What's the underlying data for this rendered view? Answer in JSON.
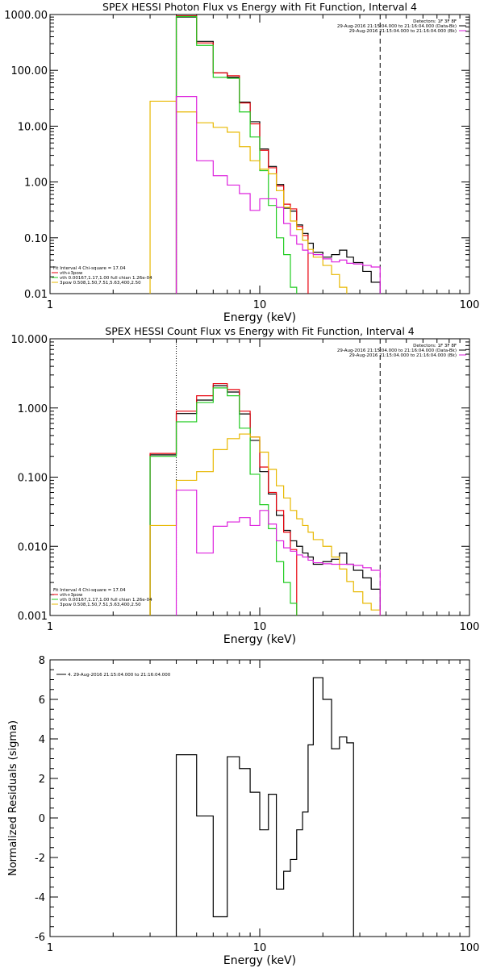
{
  "chart_data": [
    {
      "type": "line",
      "id": "photon",
      "title": "SPEX HESSI Photon Flux vs Energy with Fit Function, Interval 4",
      "xlabel": "Energy (keV)",
      "ylabel": "",
      "xscale": "log",
      "yscale": "log",
      "xlim": [
        1,
        100
      ],
      "ylim": [
        0.01,
        1000
      ],
      "xticklabels": [
        "1",
        "10",
        "100"
      ],
      "yticklabels": [
        "0.01",
        "0.10",
        "1.00",
        "10.00",
        "100.00",
        "1000.00"
      ],
      "vlines": {
        "dotted": 4.0,
        "dashed": 37.5
      },
      "bin_edges": [
        3.0,
        4.0,
        5.0,
        6.0,
        7.0,
        8.0,
        9.0,
        10.0,
        11.0,
        12.0,
        13.0,
        14.0,
        15.0,
        16.0,
        17.0,
        18.0,
        20.0,
        22.0,
        24.0,
        26.0,
        28.0,
        31.0,
        34.0,
        37.5
      ],
      "series": [
        {
          "name": "data",
          "color": "#000000",
          "values": [
            null,
            900,
            330,
            90,
            75,
            27,
            12,
            3.9,
            1.9,
            0.9,
            0.34,
            0.3,
            0.17,
            0.12,
            0.08,
            0.055,
            0.045,
            0.05,
            0.06,
            0.045,
            0.036,
            0.025,
            0.016
          ]
        },
        {
          "name": "vth+3pow",
          "color": "#e8000b",
          "values": [
            null,
            950,
            310,
            90,
            80,
            26,
            11,
            3.7,
            1.8,
            0.85,
            0.4,
            0.33,
            0.16,
            0.11
          ]
        },
        {
          "name": "vth",
          "color": "#22cc22",
          "values": [
            null,
            920,
            280,
            75,
            72,
            18,
            6.4,
            1.6,
            0.38,
            0.1,
            0.05,
            0.013
          ]
        },
        {
          "name": "3pow",
          "color": "#e8b800",
          "values": [
            28,
            18,
            11.5,
            9.5,
            7.8,
            4.3,
            2.4,
            1.7,
            1.4,
            0.7,
            0.35,
            0.2,
            0.14,
            0.09,
            0.062,
            0.045,
            0.032,
            0.022,
            0.013
          ]
        },
        {
          "name": "bkg",
          "color": "#dd22dd",
          "values": [
            null,
            34,
            2.4,
            1.3,
            0.88,
            0.62,
            0.31,
            0.5,
            0.5,
            0.35,
            0.18,
            0.11,
            0.077,
            0.06,
            0.053,
            0.05,
            0.042,
            0.037,
            0.04,
            0.035,
            0.034,
            0.032,
            0.03
          ]
        }
      ],
      "legend_top_right": [
        "Detectors: 1F 3F 8F",
        "29-Aug-2016 21:15:04.000 to 21:16:04.000 (Data-Bk)",
        "29-Aug-2016 21:15:04.000 to 21:16:04.000 (Bk)"
      ],
      "legend_bottom_left": [
        "Fit Interval 4   Chi-square = 17.04",
        "vth+3pow",
        "vth 0.00167,1.17,1.00  full chian 1.26e-04",
        "3pow 0.508,1.50,7.51,5.63,400,2.50"
      ]
    },
    {
      "type": "line",
      "id": "count",
      "title": "SPEX HESSI Count Flux vs Energy with Fit Function, Interval 4",
      "xlabel": "Energy (keV)",
      "ylabel": "",
      "xscale": "log",
      "yscale": "log",
      "xlim": [
        1,
        100
      ],
      "ylim": [
        0.001,
        10
      ],
      "xticklabels": [
        "1",
        "10",
        "100"
      ],
      "yticklabels": [
        "0.001",
        "0.010",
        "0.100",
        "1.000",
        "10.000"
      ],
      "vlines": {
        "dotted": 4.0,
        "dashed": 37.5
      },
      "bin_edges": [
        3.0,
        4.0,
        5.0,
        6.0,
        7.0,
        8.0,
        9.0,
        10.0,
        11.0,
        12.0,
        13.0,
        14.0,
        15.0,
        16.0,
        17.0,
        18.0,
        20.0,
        22.0,
        24.0,
        26.0,
        28.0,
        31.0,
        34.0,
        37.5
      ],
      "series": [
        {
          "name": "data",
          "color": "#000000",
          "values": [
            0.21,
            0.83,
            1.3,
            2.1,
            1.7,
            0.82,
            0.34,
            0.12,
            0.057,
            0.028,
            0.017,
            0.012,
            0.01,
            0.008,
            0.007,
            0.0055,
            0.006,
            0.0065,
            0.008,
            0.0055,
            0.0045,
            0.0035,
            0.0024
          ]
        },
        {
          "name": "vth+3pow",
          "color": "#e8000b",
          "values": [
            0.22,
            0.9,
            1.5,
            2.25,
            1.85,
            0.9,
            0.38,
            0.14,
            0.06,
            0.033,
            0.016,
            0.009
          ]
        },
        {
          "name": "vth",
          "color": "#22cc22",
          "values": [
            0.2,
            0.63,
            1.2,
            1.95,
            1.5,
            0.51,
            0.11,
            0.04,
            0.018,
            0.006,
            0.003,
            0.0015
          ]
        },
        {
          "name": "3pow",
          "color": "#e8b800",
          "values": [
            0.02,
            0.09,
            0.12,
            0.25,
            0.36,
            0.42,
            0.38,
            0.23,
            0.13,
            0.075,
            0.05,
            0.033,
            0.025,
            0.02,
            0.016,
            0.0125,
            0.01,
            0.007,
            0.0047,
            0.0031,
            0.0022,
            0.0015,
            0.0012
          ]
        },
        {
          "name": "bkg",
          "color": "#dd22dd",
          "values": [
            null,
            0.065,
            0.008,
            0.0195,
            0.0225,
            0.026,
            0.02,
            0.033,
            0.021,
            0.012,
            0.0095,
            0.0085,
            0.0075,
            0.007,
            0.0063,
            0.0058,
            0.0056,
            0.0055,
            0.0055,
            0.0055,
            0.0053,
            0.0049,
            0.0045
          ]
        }
      ],
      "legend_top_right": [
        "Detectors: 1F 3F 8F",
        "29-Aug-2016 21:15:04.000 to 21:16:04.000 (Data-Bk)",
        "29-Aug-2016 21:15:04.000 to 21:16:04.000 (Bk)"
      ],
      "legend_bottom_left": [
        "Fit Interval 4   Chi-square = 17.04",
        "vth+3pow",
        "vth 0.00167,1.17,1.00  full chian 1.26e-04",
        "3pow 0.508,1.50,7.51,5.63,400,2.50"
      ]
    },
    {
      "type": "line",
      "id": "resid",
      "title": "",
      "xlabel": "Energy (keV)",
      "ylabel": "Normalized Residuals (sigma)",
      "xscale": "log",
      "yscale": "linear",
      "xlim": [
        1,
        100
      ],
      "ylim": [
        -6,
        8
      ],
      "xticklabels": [
        "1",
        "10",
        "100"
      ],
      "yticklabels": [
        "-6",
        "-4",
        "-2",
        "0",
        "2",
        "4",
        "6",
        "8"
      ],
      "bin_edges": [
        4.0,
        5.0,
        6.0,
        7.0,
        8.0,
        9.0,
        10.0,
        11.0,
        12.0,
        13.0,
        14.0,
        15.0,
        16.0,
        17.0,
        18.0,
        20.0,
        22.0,
        24.0,
        26.0,
        28.0,
        31.0,
        34.0,
        37.5
      ],
      "series": [
        {
          "name": "4. 29-Aug-2016 21:15:04.000 to 21:16:04.000",
          "color": "#000000",
          "values": [
            3.2,
            0.1,
            -5.0,
            3.1,
            2.5,
            1.3,
            -0.6,
            1.2,
            -3.6,
            -2.7,
            -2.1,
            -0.6,
            0.3,
            3.7,
            7.1,
            6.0,
            3.5,
            4.1,
            3.8
          ]
        }
      ],
      "legend_top_left": [
        "4. 29-Aug-2016 21:15:04.000 to 21:16:04.000"
      ]
    }
  ]
}
